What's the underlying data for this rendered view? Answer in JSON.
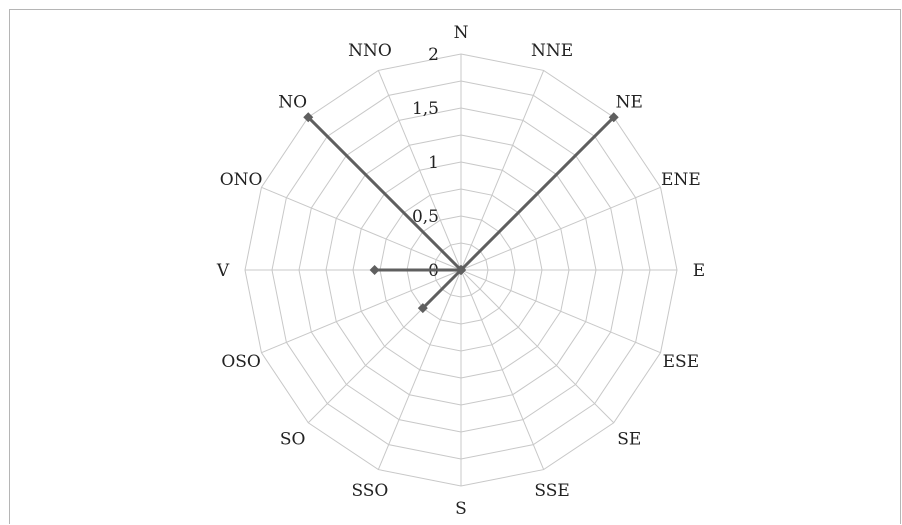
{
  "chart_data": {
    "type": "radar",
    "directions": [
      "N",
      "NNE",
      "NE",
      "ENE",
      "E",
      "ESE",
      "SE",
      "SSE",
      "S",
      "SSO",
      "SO",
      "OSO",
      "V",
      "ONO",
      "NO",
      "NNO"
    ],
    "values": [
      0,
      0,
      2,
      0,
      0,
      0,
      0,
      0,
      0,
      0,
      0.5,
      0,
      0.8,
      0,
      2,
      0
    ],
    "rmax": 2,
    "ticks": [
      0,
      0.5,
      1,
      1.5,
      2
    ],
    "tick_labels": [
      "0",
      "0,5",
      "1",
      "1,5",
      "2"
    ],
    "grid": true,
    "legend": "none",
    "colors": {
      "series": "#5f5f5f",
      "grid": "#c8c8c8"
    }
  }
}
